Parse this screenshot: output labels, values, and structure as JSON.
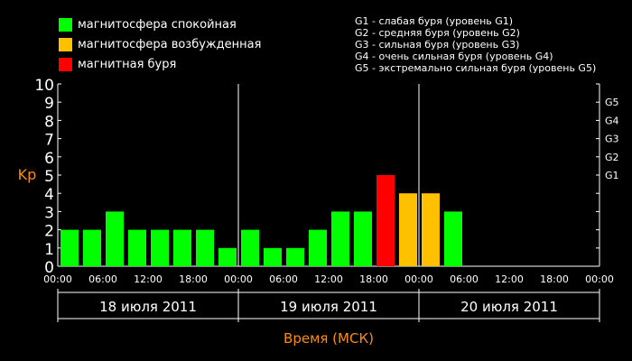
{
  "legend": {
    "items": [
      {
        "label": "магнитосфера спокойная",
        "color": "#00ff00"
      },
      {
        "label": "магнитосфера возбужденная",
        "color": "#ffc000"
      },
      {
        "label": "магнитная буря",
        "color": "#ff0000"
      }
    ]
  },
  "storm_legend": [
    "G1 - слабая буря (уровень G1)",
    "G2 - средняя буря (уровень G2)",
    "G3 - сильная буря (уровень G3)",
    "G4 - очень сильная буря (уровень G4)",
    "G5 - экстремально сильная буря (уровень G5)"
  ],
  "chart_data": {
    "type": "bar",
    "ylabel": "Kp",
    "xlabel": "Время (МСК)",
    "ylim": [
      0,
      10
    ],
    "yticks": [
      0,
      1,
      2,
      3,
      4,
      5,
      6,
      7,
      8,
      9,
      10
    ],
    "g_levels": [
      {
        "label": "G1",
        "kp": 5
      },
      {
        "label": "G2",
        "kp": 6
      },
      {
        "label": "G3",
        "kp": 7
      },
      {
        "label": "G4",
        "kp": 8
      },
      {
        "label": "G5",
        "kp": 9
      }
    ],
    "x_tick_labels": [
      "00:00",
      "06:00",
      "12:00",
      "18:00",
      "00:00",
      "06:00",
      "12:00",
      "18:00",
      "00:00",
      "06:00",
      "12:00",
      "18:00",
      "00:00"
    ],
    "days": [
      "18 июля 2011",
      "19 июля 2011",
      "20 июля 2011"
    ],
    "slots_per_day": 8,
    "values": [
      2,
      2,
      3,
      2,
      2,
      2,
      2,
      1,
      2,
      1,
      1,
      2,
      3,
      3,
      5,
      4,
      4,
      3
    ],
    "colors": {
      "quiet": "#00ff00",
      "disturbed": "#ffc000",
      "storm": "#ff0000",
      "kp_label": "#ff8c00",
      "axis": "#ffffff"
    }
  }
}
